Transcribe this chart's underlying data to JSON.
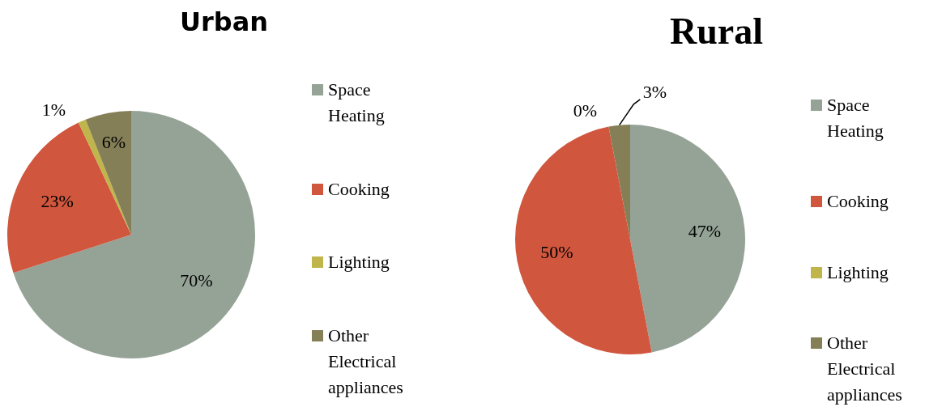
{
  "chart_data": [
    {
      "type": "pie",
      "title": "Urban",
      "categories": [
        "Space Heating",
        "Cooking",
        "Lighting",
        "Other Electrical appliances"
      ],
      "values": [
        70,
        23,
        1,
        6
      ],
      "value_labels": [
        "70%",
        "23%",
        "1%",
        "6%"
      ],
      "colors": [
        "#95a397",
        "#d0563e",
        "#bfb54a",
        "#857f57"
      ],
      "legend": "right"
    },
    {
      "type": "pie",
      "title": "Rural",
      "categories": [
        "Space Heating",
        "Cooking",
        "Lighting",
        "Other Electrical appliances"
      ],
      "values": [
        47,
        50,
        0,
        3
      ],
      "value_labels": [
        "47%",
        "50%",
        "0%",
        "3%"
      ],
      "colors": [
        "#95a397",
        "#d0563e",
        "#bfb54a",
        "#857f57"
      ],
      "legend": "right"
    }
  ]
}
